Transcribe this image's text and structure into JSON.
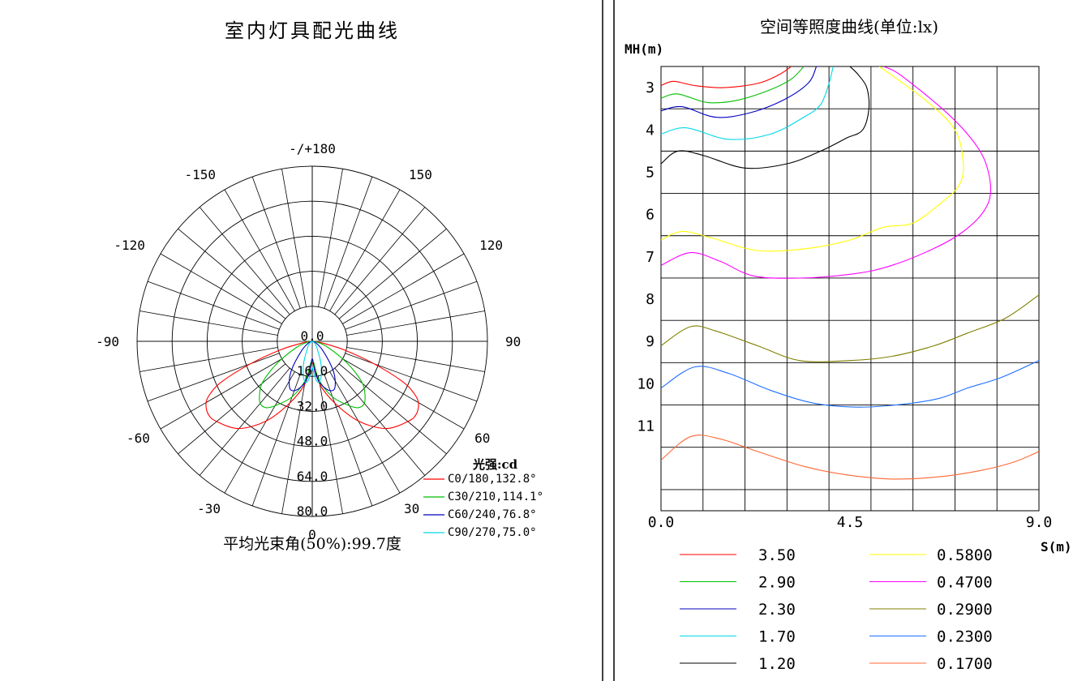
{
  "chart_data": [
    {
      "type": "polar",
      "title": "室内灯具配光曲线",
      "angle_labels": [
        {
          "deg": 180,
          "text": "-/+180"
        },
        {
          "deg": 150,
          "text": "150"
        },
        {
          "deg": -150,
          "text": "-150"
        },
        {
          "deg": 120,
          "text": "120"
        },
        {
          "deg": -120,
          "text": "-120"
        },
        {
          "deg": 90,
          "text": "90"
        },
        {
          "deg": -90,
          "text": "-90"
        },
        {
          "deg": 60,
          "text": "60"
        },
        {
          "deg": -60,
          "text": "-60"
        },
        {
          "deg": 30,
          "text": "30"
        },
        {
          "deg": -30,
          "text": "-30"
        },
        {
          "deg": 0,
          "text": "0"
        }
      ],
      "radial_ticks": [
        "0.0",
        "16.0",
        "32.0",
        "48.0",
        "64.0",
        "80.0"
      ],
      "radial_max": 80,
      "legend_title": "光强:cd",
      "series": [
        {
          "name": "C0/180,132.8°",
          "color": "#ff0000",
          "points": [
            [
              0,
              10
            ],
            [
              10,
              20
            ],
            [
              20,
              30
            ],
            [
              30,
              42
            ],
            [
              40,
              52
            ],
            [
              50,
              57
            ],
            [
              55,
              58
            ],
            [
              60,
              56
            ],
            [
              63,
              52
            ],
            [
              66,
              45
            ],
            [
              70,
              30
            ],
            [
              75,
              15
            ],
            [
              80,
              5
            ],
            [
              85,
              1
            ],
            [
              90,
              0
            ]
          ]
        },
        {
          "name": "C30/210,114.1°",
          "color": "#00c000",
          "points": [
            [
              0,
              9
            ],
            [
              10,
              18
            ],
            [
              20,
              27
            ],
            [
              30,
              34
            ],
            [
              35,
              37
            ],
            [
              40,
              37
            ],
            [
              45,
              34
            ],
            [
              50,
              30
            ],
            [
              55,
              23
            ],
            [
              60,
              16
            ],
            [
              70,
              7
            ],
            [
              80,
              2
            ],
            [
              90,
              0
            ]
          ]
        },
        {
          "name": "C60/240,76.8°",
          "color": "#0000c0",
          "points": [
            [
              0,
              8
            ],
            [
              5,
              14
            ],
            [
              10,
              19
            ],
            [
              15,
              22
            ],
            [
              20,
              24
            ],
            [
              25,
              24
            ],
            [
              30,
              21
            ],
            [
              35,
              17
            ],
            [
              40,
              12
            ],
            [
              50,
              6
            ],
            [
              60,
              3
            ],
            [
              75,
              1
            ],
            [
              90,
              0
            ]
          ]
        },
        {
          "name": "C90/270,75.0°",
          "color": "#00d8e8",
          "points": [
            [
              0,
              12
            ],
            [
              3,
              15
            ],
            [
              6,
              18
            ],
            [
              9,
              19
            ],
            [
              12,
              18
            ],
            [
              15,
              16
            ],
            [
              20,
              12
            ],
            [
              25,
              8
            ],
            [
              30,
              5
            ],
            [
              40,
              3
            ],
            [
              60,
              1
            ],
            [
              90,
              0
            ]
          ]
        }
      ],
      "footer": "平均光束角(50%):99.7度"
    },
    {
      "type": "contour",
      "title": "空间等照度曲线(单位:lx)",
      "ylabel": "MH(m)",
      "xlabel": "S(m)",
      "x_range": [
        0,
        9
      ],
      "y_range": [
        2,
        12.5
      ],
      "x_ticks": [
        "0.0",
        "4.5",
        "9.0"
      ],
      "y_ticks": [
        3,
        4,
        5,
        6,
        7,
        8,
        9,
        10,
        11
      ],
      "series": [
        {
          "name": "3.50",
          "color": "#ff0000",
          "points": [
            [
              0,
              2.45
            ],
            [
              0.3,
              2.35
            ],
            [
              0.8,
              2.45
            ],
            [
              1.5,
              2.5
            ],
            [
              2.3,
              2.4
            ],
            [
              2.8,
              2.2
            ],
            [
              3.1,
              2
            ]
          ]
        },
        {
          "name": "2.90",
          "color": "#00c000",
          "points": [
            [
              0,
              2.75
            ],
            [
              0.4,
              2.65
            ],
            [
              1.1,
              2.85
            ],
            [
              1.8,
              2.8
            ],
            [
              2.6,
              2.55
            ],
            [
              3.1,
              2.3
            ],
            [
              3.4,
              2
            ]
          ]
        },
        {
          "name": "2.30",
          "color": "#0000c0",
          "points": [
            [
              0,
              3.05
            ],
            [
              0.5,
              2.95
            ],
            [
              1.3,
              3.2
            ],
            [
              2.1,
              3.1
            ],
            [
              2.9,
              2.8
            ],
            [
              3.5,
              2.4
            ],
            [
              3.7,
              2
            ]
          ]
        },
        {
          "name": "1.70",
          "color": "#00d8e8",
          "points": [
            [
              0,
              3.6
            ],
            [
              0.6,
              3.45
            ],
            [
              1.6,
              3.72
            ],
            [
              2.6,
              3.6
            ],
            [
              3.4,
              3.2
            ],
            [
              3.8,
              2.9
            ],
            [
              4.0,
              2.4
            ],
            [
              4.1,
              2
            ]
          ]
        },
        {
          "name": "1.20",
          "color": "#000000",
          "points": [
            [
              0,
              4.3
            ],
            [
              0.4,
              4.0
            ],
            [
              1.0,
              4.1
            ],
            [
              2.0,
              4.4
            ],
            [
              3.0,
              4.3
            ],
            [
              3.8,
              4.0
            ],
            [
              4.4,
              3.7
            ],
            [
              4.8,
              3.5
            ],
            [
              4.95,
              3.0
            ],
            [
              4.9,
              2.5
            ],
            [
              4.7,
              2.2
            ],
            [
              4.5,
              2
            ]
          ]
        },
        {
          "name": "0.5800",
          "color": "#ffff00",
          "points": [
            [
              0,
              6.1
            ],
            [
              0.5,
              5.9
            ],
            [
              1.2,
              6.05
            ],
            [
              2.3,
              6.35
            ],
            [
              3.5,
              6.3
            ],
            [
              4.5,
              6.1
            ],
            [
              5.3,
              5.8
            ],
            [
              6.0,
              5.7
            ],
            [
              6.7,
              5.2
            ],
            [
              7.1,
              4.8
            ],
            [
              7.2,
              4.3
            ],
            [
              7.0,
              3.5
            ],
            [
              6.3,
              2.8
            ],
            [
              5.2,
              2
            ]
          ]
        },
        {
          "name": "0.4700",
          "color": "#ff00ff",
          "points": [
            [
              0,
              6.7
            ],
            [
              0.7,
              6.4
            ],
            [
              1.4,
              6.6
            ],
            [
              2.2,
              6.95
            ],
            [
              3.3,
              7.0
            ],
            [
              4.6,
              6.9
            ],
            [
              5.5,
              6.7
            ],
            [
              6.5,
              6.3
            ],
            [
              7.2,
              5.9
            ],
            [
              7.7,
              5.4
            ],
            [
              7.85,
              4.9
            ],
            [
              7.7,
              4.2
            ],
            [
              7.3,
              3.6
            ],
            [
              6.7,
              3.0
            ],
            [
              5.7,
              2.2
            ],
            [
              5.3,
              2
            ]
          ]
        },
        {
          "name": "0.2900",
          "color": "#808000",
          "points": [
            [
              0,
              8.6
            ],
            [
              0.7,
              8.15
            ],
            [
              1.3,
              8.25
            ],
            [
              2.3,
              8.6
            ],
            [
              3.3,
              8.95
            ],
            [
              4.5,
              8.95
            ],
            [
              5.5,
              8.85
            ],
            [
              6.5,
              8.6
            ],
            [
              7.3,
              8.3
            ],
            [
              8.2,
              7.95
            ],
            [
              9.0,
              7.4
            ]
          ]
        },
        {
          "name": "0.2300",
          "color": "#1e6fff",
          "points": [
            [
              0,
              9.6
            ],
            [
              0.8,
              9.1
            ],
            [
              1.6,
              9.25
            ],
            [
              2.6,
              9.65
            ],
            [
              3.6,
              9.95
            ],
            [
              4.6,
              10.05
            ],
            [
              5.6,
              10.0
            ],
            [
              6.6,
              9.85
            ],
            [
              7.3,
              9.6
            ],
            [
              8.1,
              9.35
            ],
            [
              9.0,
              8.95
            ]
          ]
        },
        {
          "name": "0.1700",
          "color": "#ff6633",
          "points": [
            [
              0,
              11.3
            ],
            [
              0.7,
              10.75
            ],
            [
              1.4,
              10.8
            ],
            [
              2.3,
              11.1
            ],
            [
              3.4,
              11.45
            ],
            [
              4.4,
              11.65
            ],
            [
              5.5,
              11.75
            ],
            [
              6.6,
              11.7
            ],
            [
              7.6,
              11.55
            ],
            [
              8.4,
              11.35
            ],
            [
              9.0,
              11.1
            ]
          ]
        }
      ]
    }
  ]
}
